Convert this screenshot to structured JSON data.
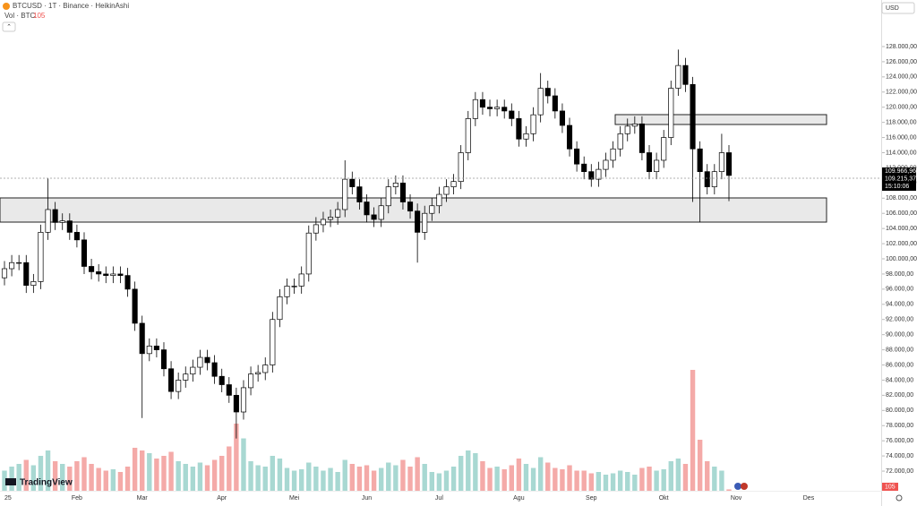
{
  "header": {
    "symbol": "BTCUSD · 1T · Binance · HeikinAshi",
    "volume_label": "Vol · BTC",
    "currency": "USD",
    "brand": "TradingView"
  },
  "price_labels": [
    "109.966,96",
    "109.215,37",
    "15:10:06"
  ],
  "chart_data": {
    "type": "candlestick",
    "grid": false,
    "categories": [
      "25",
      null,
      null,
      null,
      null,
      null,
      null,
      null,
      null,
      null,
      "Feb",
      null,
      null,
      null,
      null,
      null,
      null,
      null,
      null,
      "Mar",
      null,
      null,
      null,
      null,
      null,
      null,
      null,
      null,
      null,
      null,
      "Apr",
      null,
      null,
      null,
      null,
      null,
      null,
      null,
      null,
      null,
      "Mei",
      null,
      null,
      null,
      null,
      null,
      null,
      null,
      null,
      null,
      "Jun",
      null,
      null,
      null,
      null,
      null,
      null,
      null,
      null,
      null,
      "Jul",
      null,
      null,
      null,
      null,
      null,
      null,
      null,
      null,
      null,
      null,
      "Agu",
      null,
      null,
      null,
      null,
      null,
      null,
      null,
      null,
      null,
      "Sep",
      null,
      null,
      null,
      null,
      null,
      null,
      null,
      null,
      null,
      "Okt",
      null,
      null,
      null,
      null,
      null,
      null,
      null,
      null,
      null,
      "Nov",
      null,
      null,
      null,
      null,
      null,
      null,
      null,
      null,
      null,
      "Des"
    ],
    "open": [
      97500,
      98700,
      99500,
      99500,
      96500,
      97000,
      103500,
      106500,
      104800,
      105000,
      103500,
      102500,
      99000,
      98300,
      98000,
      97800,
      98000,
      97800,
      96000,
      91500,
      87500,
      88500,
      88000,
      85500,
      82500,
      84000,
      84800,
      85700,
      87000,
      86300,
      84500,
      83400,
      82000,
      79800,
      83000,
      84800,
      85000,
      86000,
      92000,
      95000,
      96400,
      96400,
      98000,
      103400,
      104500,
      105200,
      105500,
      106500,
      110500,
      109500,
      107500,
      105800,
      105200,
      107000,
      109500,
      110000,
      107500,
      106300,
      103500,
      106000,
      107000,
      108500,
      109500,
      110200,
      114000,
      118500,
      121000,
      120000,
      119800,
      120000,
      119500,
      118500,
      115800,
      116500,
      119000,
      122500,
      121500,
      119500,
      117600,
      114500,
      112500,
      111500,
      110500,
      111800,
      113000,
      114500,
      116500,
      117500,
      117800,
      114000,
      111500,
      113000,
      116000,
      122500,
      125500,
      123000,
      114500,
      111500,
      109500,
      111500,
      114000,
      null,
      null,
      null,
      null,
      null,
      null,
      null,
      null,
      null,
      null,
      null
    ],
    "high": [
      99700,
      100500,
      100500,
      100500,
      98000,
      104500,
      110600,
      107500,
      106000,
      106000,
      104500,
      103500,
      100000,
      99300,
      99000,
      99000,
      99000,
      98800,
      97000,
      92500,
      89500,
      89500,
      89000,
      86500,
      85000,
      85800,
      86700,
      88000,
      88000,
      87300,
      85500,
      84400,
      83000,
      84000,
      85800,
      86000,
      87000,
      93000,
      96000,
      97400,
      97400,
      99000,
      104400,
      105500,
      106200,
      106500,
      107500,
      113000,
      111500,
      110500,
      108500,
      106800,
      108000,
      110500,
      111000,
      111000,
      108500,
      107300,
      107000,
      108000,
      109500,
      110500,
      111200,
      115000,
      119500,
      122000,
      122000,
      121000,
      121000,
      121000,
      120500,
      119500,
      117500,
      120000,
      124500,
      123500,
      122500,
      120500,
      118600,
      115500,
      113500,
      112500,
      112800,
      114000,
      115500,
      117500,
      118500,
      118800,
      118800,
      115000,
      114000,
      117000,
      123500,
      127600,
      126500,
      124000,
      115500,
      112500,
      112500,
      116500,
      115000,
      null,
      null,
      null,
      null,
      null,
      null,
      null,
      null,
      null,
      null,
      null
    ],
    "low": [
      96500,
      97700,
      98500,
      95500,
      95500,
      96000,
      102500,
      103800,
      103800,
      102500,
      101500,
      98000,
      97300,
      97000,
      96800,
      96800,
      96800,
      95000,
      90500,
      79000,
      86500,
      87000,
      84500,
      81500,
      81500,
      83000,
      83800,
      84700,
      85300,
      83500,
      82400,
      81000,
      76300,
      78800,
      82000,
      83800,
      84000,
      85000,
      91000,
      94000,
      95400,
      95400,
      97000,
      102400,
      103500,
      104200,
      104500,
      105500,
      108500,
      106500,
      104800,
      104200,
      104200,
      106000,
      108500,
      106500,
      105300,
      99500,
      102500,
      105000,
      106000,
      107500,
      108500,
      109200,
      113000,
      117500,
      119000,
      118800,
      118800,
      118500,
      117500,
      114800,
      114800,
      115500,
      118000,
      120500,
      118500,
      116600,
      113500,
      111500,
      110500,
      109500,
      109500,
      110800,
      112000,
      113500,
      115500,
      116500,
      113000,
      110500,
      110500,
      112000,
      115000,
      121500,
      122000,
      107500,
      104800,
      108500,
      108500,
      110500,
      107600,
      null,
      null,
      null,
      null,
      null,
      null,
      null,
      null,
      null,
      null,
      null
    ],
    "close": [
      98700,
      99500,
      99500,
      96500,
      97000,
      103500,
      106500,
      104800,
      105000,
      103500,
      102500,
      99000,
      98300,
      98000,
      97800,
      98000,
      97800,
      96000,
      91500,
      87500,
      88500,
      88000,
      85500,
      82500,
      84000,
      84800,
      85700,
      87000,
      86300,
      84500,
      83400,
      82000,
      79800,
      83000,
      84800,
      85000,
      86000,
      92000,
      95000,
      96400,
      96400,
      98000,
      103400,
      104500,
      105200,
      105500,
      106500,
      110500,
      109500,
      107500,
      105800,
      105200,
      107000,
      109500,
      110000,
      107500,
      106300,
      103500,
      106000,
      107000,
      108500,
      109500,
      110200,
      114000,
      118500,
      121000,
      120000,
      119800,
      120000,
      119500,
      118500,
      115800,
      116500,
      119000,
      122500,
      121500,
      119500,
      117600,
      114500,
      112500,
      111500,
      110500,
      111800,
      113000,
      114500,
      116500,
      117500,
      117800,
      114000,
      111500,
      113000,
      116000,
      122500,
      125500,
      123000,
      114500,
      111500,
      109500,
      111500,
      114000,
      111000,
      null,
      null,
      null,
      null,
      null,
      null,
      null,
      null,
      null,
      null,
      null
    ],
    "up_color": "#ffffff",
    "down_color": "#000000",
    "edge_color": "#000000",
    "ylim": [
      69760,
      134140
    ],
    "yticks": [
      {
        "value": 72000,
        "label": "72.000,00"
      },
      {
        "value": 74000,
        "label": "74.000,00"
      },
      {
        "value": 76000,
        "label": "76.000,00"
      },
      {
        "value": 78000,
        "label": "78.000,00"
      },
      {
        "value": 80000,
        "label": "80.000,00"
      },
      {
        "value": 82000,
        "label": "82.000,00"
      },
      {
        "value": 84000,
        "label": "84.000,00"
      },
      {
        "value": 86000,
        "label": "86.000,00"
      },
      {
        "value": 88000,
        "label": "88.000,00"
      },
      {
        "value": 90000,
        "label": "90.000,00"
      },
      {
        "value": 92000,
        "label": "92.000,00"
      },
      {
        "value": 94000,
        "label": "94.000,00"
      },
      {
        "value": 96000,
        "label": "96.000,00"
      },
      {
        "value": 98000,
        "label": "98.000,00"
      },
      {
        "value": 100000,
        "label": "100.000,00"
      },
      {
        "value": 102000,
        "label": "102.000,00"
      },
      {
        "value": 104000,
        "label": "104.000,00"
      },
      {
        "value": 106000,
        "label": "106.000,00"
      },
      {
        "value": 108000,
        "label": "108.000,00"
      },
      {
        "value": 110000,
        "label": "110.000,00"
      },
      {
        "value": 112000,
        "label": "112.000,00"
      },
      {
        "value": 114000,
        "label": "114.000,00"
      },
      {
        "value": 116000,
        "label": "116.000,00"
      },
      {
        "value": 118000,
        "label": "118.000,00"
      },
      {
        "value": 120000,
        "label": "120.000,00"
      },
      {
        "value": 122000,
        "label": "122.000,00"
      },
      {
        "value": 124000,
        "label": "124.000,00"
      },
      {
        "value": 126000,
        "label": "126.000,00"
      },
      {
        "value": 128000,
        "label": "128.000,00"
      }
    ],
    "volume": {
      "values": [
        1500,
        1800,
        2000,
        2300,
        1900,
        2600,
        3000,
        2200,
        2000,
        1800,
        2200,
        2500,
        2000,
        1700,
        1500,
        1600,
        1400,
        1800,
        3200,
        3000,
        2800,
        2400,
        2600,
        2900,
        2200,
        2000,
        1800,
        2100,
        1900,
        2300,
        2600,
        3300,
        5000,
        3900,
        2200,
        1900,
        1800,
        2600,
        2400,
        1700,
        1500,
        1600,
        2100,
        1800,
        1500,
        1700,
        1400,
        2300,
        2000,
        1800,
        1900,
        1500,
        1700,
        2100,
        1900,
        2300,
        1800,
        2500,
        2000,
        1400,
        1300,
        1500,
        1800,
        2600,
        3000,
        2800,
        2200,
        1700,
        1800,
        1600,
        1900,
        2400,
        2000,
        1700,
        2500,
        2100,
        1700,
        1600,
        1900,
        1500,
        1500,
        1300,
        1400,
        1200,
        1300,
        1500,
        1400,
        1200,
        1700,
        1800,
        1500,
        1600,
        2200,
        2400,
        2000,
        9000,
        3800,
        2200,
        1800,
        1500,
        105,
        null,
        null,
        null,
        null,
        null,
        null,
        null,
        null,
        null,
        null,
        null
      ],
      "vlim": [
        0,
        10000
      ],
      "up_color": "#a8d8d2",
      "down_color": "#f4aaa8"
    }
  }
}
